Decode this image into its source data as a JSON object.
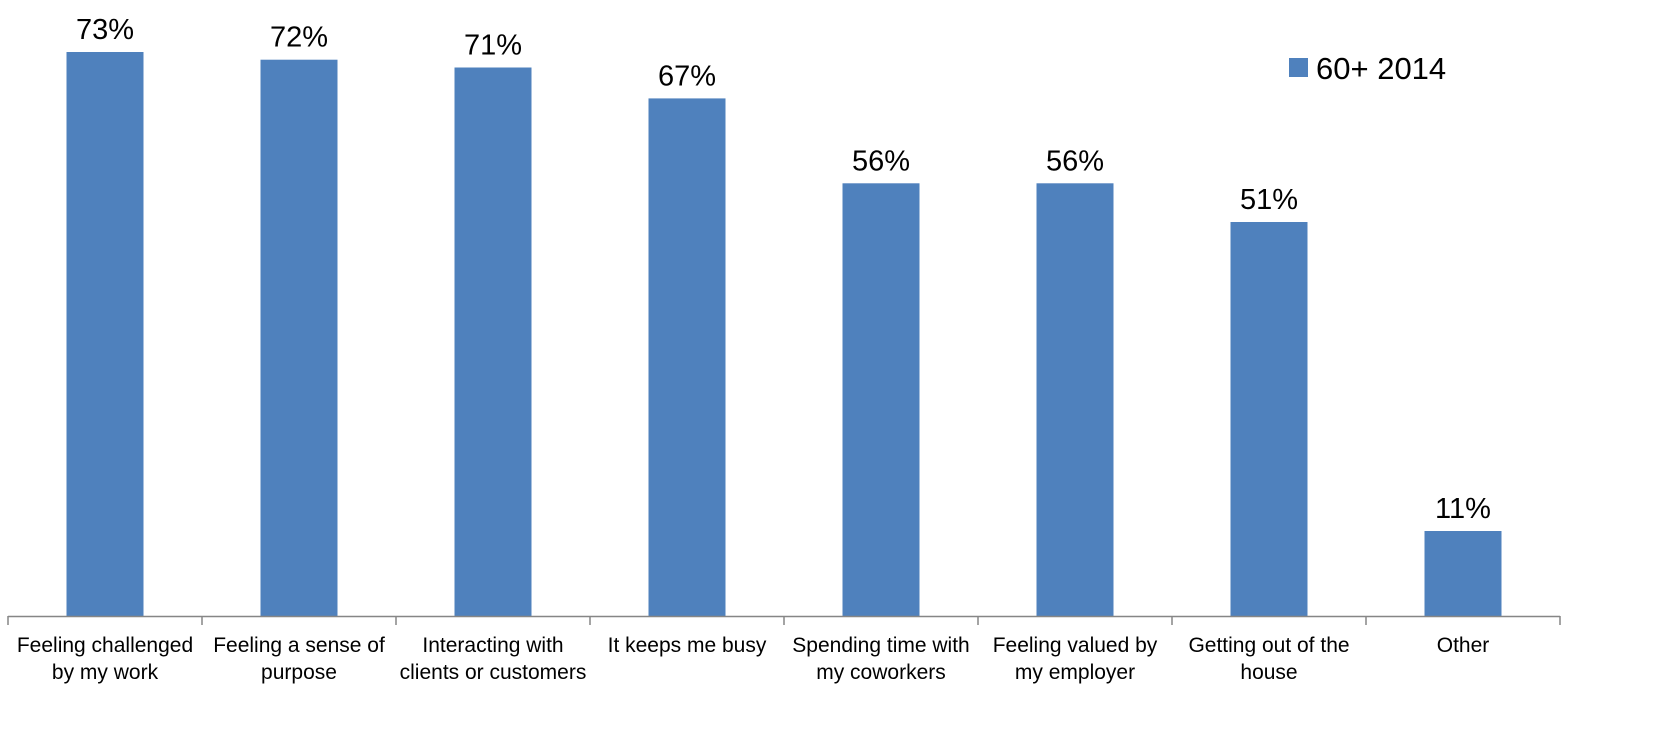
{
  "chart_data": {
    "type": "bar",
    "categories": [
      [
        "Feeling challenged",
        "by my work"
      ],
      [
        "Feeling a sense of",
        "purpose"
      ],
      [
        "Interacting with",
        "clients or customers"
      ],
      [
        "It keeps me busy"
      ],
      [
        "Spending time with",
        "my coworkers"
      ],
      [
        "Feeling valued by",
        "my employer"
      ],
      [
        "Getting out of the",
        "house"
      ],
      [
        "Other"
      ]
    ],
    "series": [
      {
        "name": "60+ 2014",
        "values": [
          73,
          72,
          71,
          67,
          56,
          56,
          51,
          11
        ],
        "labels": [
          "73%",
          "72%",
          "71%",
          "67%",
          "56%",
          "56%",
          "51%",
          "11%"
        ],
        "color": "#4f81bd"
      }
    ],
    "ylim": [
      0,
      73
    ],
    "grid": false,
    "legend_position": "top-right",
    "axis_color": "#868686"
  }
}
